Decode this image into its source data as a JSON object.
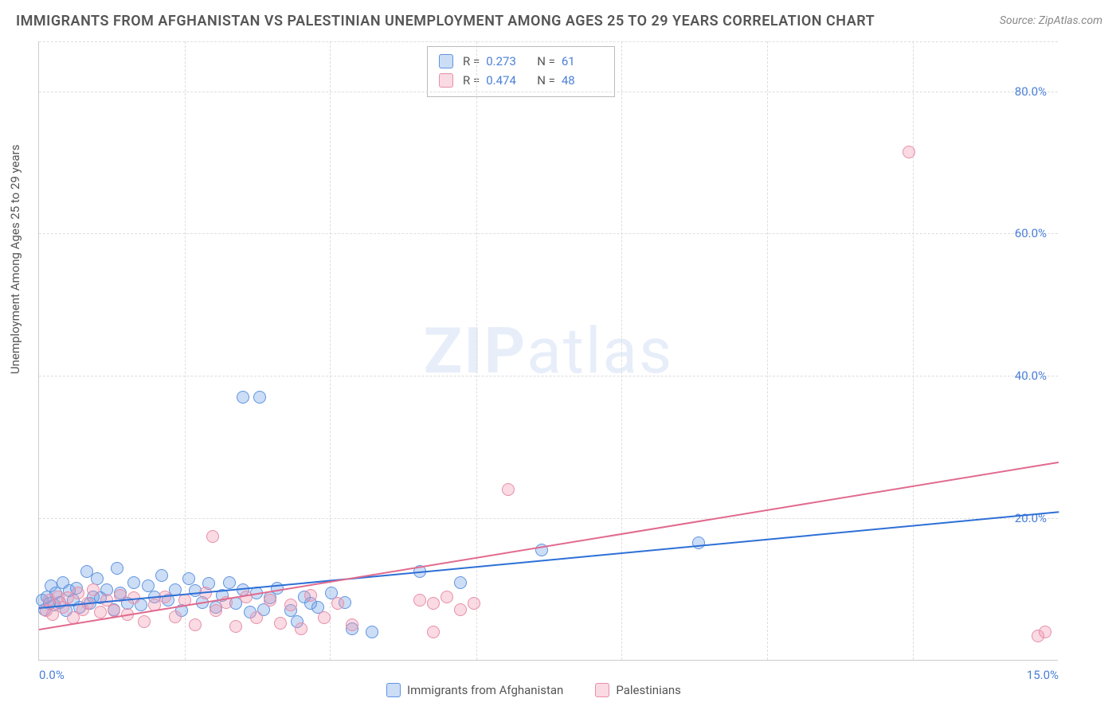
{
  "title": "IMMIGRANTS FROM AFGHANISTAN VS PALESTINIAN UNEMPLOYMENT AMONG AGES 25 TO 29 YEARS CORRELATION CHART",
  "source_label": "Source: ZipAtlas.com",
  "y_axis_label": "Unemployment Among Ages 25 to 29 years",
  "watermark_bold": "ZIP",
  "watermark_rest": "atlas",
  "chart": {
    "type": "scatter",
    "xlim": [
      0,
      15
    ],
    "ylim": [
      0,
      87
    ],
    "x_ticks": [
      0,
      15
    ],
    "x_tick_labels": [
      "0.0%",
      "15.0%"
    ],
    "x_vgrid": [
      2.14,
      4.28,
      6.43,
      8.57,
      10.71,
      12.86
    ],
    "y_ticks": [
      20,
      40,
      60,
      80
    ],
    "y_tick_labels": [
      "20.0%",
      "40.0%",
      "60.0%",
      "80.0%"
    ],
    "background_color": "#ffffff",
    "grid_color": "#dddddd",
    "axis_color": "#cccccc",
    "tick_label_color": "#4a7fd8",
    "marker_radius": 8,
    "series": [
      {
        "key": "afghanistan",
        "name": "Immigrants from Afghanistan",
        "color_fill": "rgba(108, 158, 230, 0.35)",
        "color_stroke": "#5f94e0",
        "R": "0.273",
        "N": "61",
        "trend": {
          "x1": 0,
          "y1": 7.5,
          "x2": 15,
          "y2": 21.0,
          "color": "#2d6fd6",
          "width": 2
        },
        "points": [
          [
            0.05,
            8.5
          ],
          [
            0.08,
            7.2
          ],
          [
            0.12,
            9.0
          ],
          [
            0.15,
            8.0
          ],
          [
            0.18,
            10.5
          ],
          [
            0.22,
            7.8
          ],
          [
            0.25,
            9.5
          ],
          [
            0.3,
            8.2
          ],
          [
            0.35,
            11.0
          ],
          [
            0.4,
            7.0
          ],
          [
            0.45,
            9.8
          ],
          [
            0.5,
            8.5
          ],
          [
            0.55,
            10.2
          ],
          [
            0.6,
            7.5
          ],
          [
            0.7,
            12.5
          ],
          [
            0.75,
            8.0
          ],
          [
            0.8,
            9.0
          ],
          [
            0.85,
            11.5
          ],
          [
            0.9,
            8.8
          ],
          [
            1.0,
            10.0
          ],
          [
            1.1,
            7.2
          ],
          [
            1.15,
            13.0
          ],
          [
            1.2,
            9.5
          ],
          [
            1.3,
            8.0
          ],
          [
            1.4,
            11.0
          ],
          [
            1.5,
            7.8
          ],
          [
            1.6,
            10.5
          ],
          [
            1.7,
            9.0
          ],
          [
            1.8,
            12.0
          ],
          [
            1.9,
            8.5
          ],
          [
            2.0,
            10.0
          ],
          [
            2.1,
            7.0
          ],
          [
            2.2,
            11.5
          ],
          [
            2.3,
            9.8
          ],
          [
            2.4,
            8.2
          ],
          [
            2.5,
            10.8
          ],
          [
            2.6,
            7.5
          ],
          [
            2.7,
            9.2
          ],
          [
            2.8,
            11.0
          ],
          [
            2.9,
            8.0
          ],
          [
            3.0,
            10.0
          ],
          [
            3.1,
            6.8
          ],
          [
            3.2,
            9.5
          ],
          [
            3.3,
            7.2
          ],
          [
            3.4,
            8.8
          ],
          [
            3.5,
            10.2
          ],
          [
            3.7,
            7.0
          ],
          [
            3.8,
            5.5
          ],
          [
            3.9,
            9.0
          ],
          [
            4.0,
            8.0
          ],
          [
            4.1,
            7.5
          ],
          [
            4.3,
            9.5
          ],
          [
            4.5,
            8.2
          ],
          [
            4.6,
            4.5
          ],
          [
            5.6,
            12.5
          ],
          [
            3.0,
            37.0
          ],
          [
            3.25,
            37.0
          ],
          [
            6.2,
            11.0
          ],
          [
            7.4,
            15.5
          ],
          [
            9.7,
            16.5
          ],
          [
            4.9,
            4.0
          ]
        ]
      },
      {
        "key": "palestinians",
        "name": "Palestinians",
        "color_fill": "rgba(240, 150, 175, 0.35)",
        "color_stroke": "#e78fa8",
        "R": "0.474",
        "N": "48",
        "trend": {
          "x1": 0,
          "y1": 4.5,
          "x2": 15,
          "y2": 28.0,
          "color": "#e16a8e",
          "width": 2
        },
        "points": [
          [
            0.1,
            7.0
          ],
          [
            0.15,
            8.5
          ],
          [
            0.2,
            6.5
          ],
          [
            0.28,
            9.0
          ],
          [
            0.35,
            7.5
          ],
          [
            0.42,
            8.8
          ],
          [
            0.5,
            6.0
          ],
          [
            0.58,
            9.5
          ],
          [
            0.65,
            7.2
          ],
          [
            0.72,
            8.0
          ],
          [
            0.8,
            10.0
          ],
          [
            0.9,
            6.8
          ],
          [
            1.0,
            8.5
          ],
          [
            1.1,
            7.0
          ],
          [
            1.2,
            9.2
          ],
          [
            1.3,
            6.5
          ],
          [
            1.4,
            8.8
          ],
          [
            1.55,
            5.5
          ],
          [
            1.7,
            7.8
          ],
          [
            1.85,
            9.0
          ],
          [
            2.0,
            6.2
          ],
          [
            2.15,
            8.5
          ],
          [
            2.3,
            5.0
          ],
          [
            2.45,
            9.5
          ],
          [
            2.55,
            17.5
          ],
          [
            2.6,
            7.0
          ],
          [
            2.75,
            8.2
          ],
          [
            2.9,
            4.8
          ],
          [
            3.05,
            9.0
          ],
          [
            3.2,
            6.0
          ],
          [
            3.4,
            8.5
          ],
          [
            3.55,
            5.2
          ],
          [
            3.7,
            7.8
          ],
          [
            3.85,
            4.5
          ],
          [
            4.0,
            9.2
          ],
          [
            4.2,
            6.0
          ],
          [
            4.4,
            8.0
          ],
          [
            4.6,
            5.0
          ],
          [
            5.6,
            8.5
          ],
          [
            5.8,
            4.0
          ],
          [
            6.0,
            9.0
          ],
          [
            6.2,
            7.2
          ],
          [
            6.4,
            8.0
          ],
          [
            5.8,
            8.0
          ],
          [
            6.9,
            24.0
          ],
          [
            12.8,
            71.5
          ],
          [
            14.7,
            3.5
          ],
          [
            14.8,
            4.0
          ]
        ]
      }
    ]
  },
  "stats_box": {
    "r_label": "R =",
    "n_label": "N ="
  },
  "bottom_legend_labels": {
    "series1": "Immigrants from Afghanistan",
    "series2": "Palestinians"
  }
}
